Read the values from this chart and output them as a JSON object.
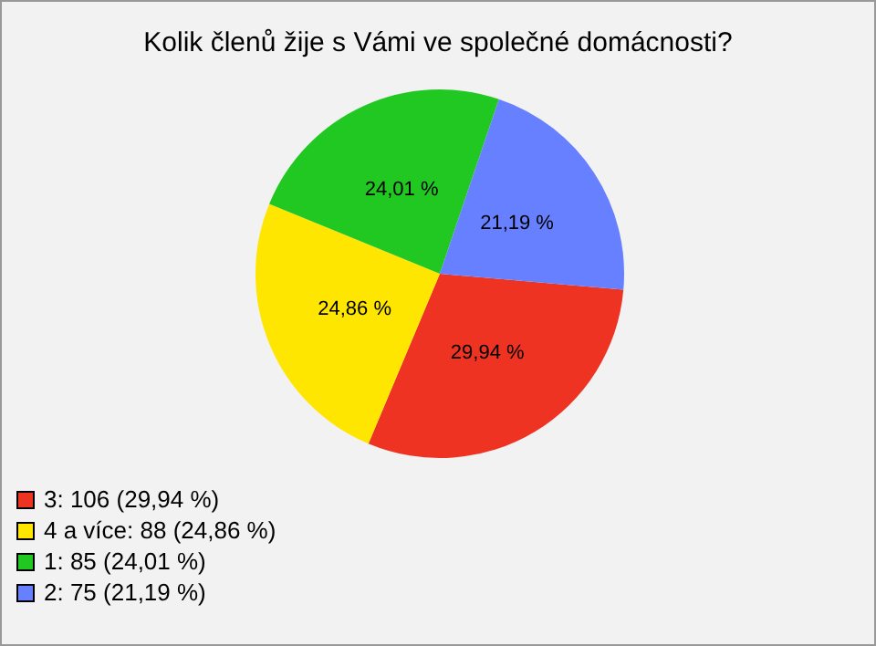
{
  "chart_data": {
    "type": "pie",
    "title": "Kolik členů žije s Vámi ve společné domácnosti?",
    "categories": [
      "3: 106 (29,94 %)",
      "4 a více: 88 (24,86 %)",
      "1: 85 (24,01 %)",
      "2: 75 (21,19 %)"
    ],
    "values": [
      29.94,
      24.86,
      24.01,
      21.19
    ],
    "colors": [
      "#ee3322",
      "#ffe600",
      "#22c822",
      "#6680ff"
    ],
    "value_labels": [
      "29,94 %",
      "24,86 %",
      "24,01 %",
      "21,19 %"
    ],
    "legend": "bottom left"
  }
}
